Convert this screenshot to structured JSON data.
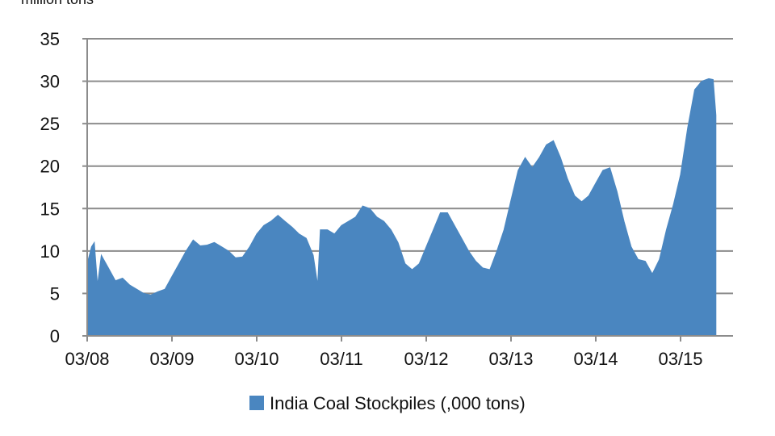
{
  "chart_data": {
    "type": "area",
    "unit_label": "million tons",
    "legend_position": "bottom",
    "grid": true,
    "ylim": [
      0,
      35
    ],
    "y_ticks": [
      0,
      5,
      10,
      15,
      20,
      25,
      30,
      35
    ],
    "x_ticks": [
      "03/08",
      "03/09",
      "03/10",
      "03/11",
      "03/12",
      "03/13",
      "03/14",
      "03/15"
    ],
    "x_range": [
      "2008-03",
      "2015-08"
    ],
    "series": [
      {
        "name": "India Coal Stockpiles (,000 tons)",
        "color": "#4a86c0",
        "points": [
          [
            "2008-03",
            8.5
          ],
          [
            "2008-03-20",
            10.5
          ],
          [
            "2008-04",
            11.0
          ],
          [
            "2008-04-15",
            6.0
          ],
          [
            "2008-05",
            9.5
          ],
          [
            "2008-06",
            8.0
          ],
          [
            "2008-07",
            6.5
          ],
          [
            "2008-08",
            6.8
          ],
          [
            "2008-09",
            6.0
          ],
          [
            "2008-10",
            5.5
          ],
          [
            "2008-11",
            5.0
          ],
          [
            "2008-12",
            4.8
          ],
          [
            "2009-01",
            5.2
          ],
          [
            "2009-02",
            5.5
          ],
          [
            "2009-03",
            7.0
          ],
          [
            "2009-04",
            8.5
          ],
          [
            "2009-05",
            10.0
          ],
          [
            "2009-06",
            11.3
          ],
          [
            "2009-07",
            10.6
          ],
          [
            "2009-08",
            10.7
          ],
          [
            "2009-09",
            11.0
          ],
          [
            "2009-10",
            10.5
          ],
          [
            "2009-11",
            10.0
          ],
          [
            "2009-12",
            9.2
          ],
          [
            "2010-01",
            9.3
          ],
          [
            "2010-02",
            10.5
          ],
          [
            "2010-03",
            12.0
          ],
          [
            "2010-04",
            13.0
          ],
          [
            "2010-05",
            13.5
          ],
          [
            "2010-06",
            14.2
          ],
          [
            "2010-07",
            13.5
          ],
          [
            "2010-08",
            12.8
          ],
          [
            "2010-09",
            12.0
          ],
          [
            "2010-10",
            11.5
          ],
          [
            "2010-11",
            9.5
          ],
          [
            "2010-11-20",
            6.0
          ],
          [
            "2010-12",
            12.5
          ],
          [
            "2011-01",
            12.5
          ],
          [
            "2011-02",
            12.0
          ],
          [
            "2011-03",
            13.0
          ],
          [
            "2011-04",
            13.5
          ],
          [
            "2011-05",
            14.0
          ],
          [
            "2011-06",
            15.3
          ],
          [
            "2011-07",
            15.0
          ],
          [
            "2011-08",
            14.0
          ],
          [
            "2011-09",
            13.5
          ],
          [
            "2011-10",
            12.5
          ],
          [
            "2011-11",
            11.0
          ],
          [
            "2011-12",
            8.5
          ],
          [
            "2012-01",
            7.8
          ],
          [
            "2012-02",
            8.5
          ],
          [
            "2012-03",
            10.5
          ],
          [
            "2012-04",
            12.5
          ],
          [
            "2012-05",
            14.5
          ],
          [
            "2012-06",
            14.5
          ],
          [
            "2012-07",
            13.0
          ],
          [
            "2012-08",
            11.5
          ],
          [
            "2012-09",
            10.0
          ],
          [
            "2012-10",
            8.8
          ],
          [
            "2012-11",
            8.0
          ],
          [
            "2012-12",
            7.8
          ],
          [
            "2013-01",
            10.0
          ],
          [
            "2013-02",
            12.5
          ],
          [
            "2013-03",
            16.0
          ],
          [
            "2013-04",
            19.5
          ],
          [
            "2013-05",
            21.0
          ],
          [
            "2013-06",
            19.8
          ],
          [
            "2013-07",
            21.0
          ],
          [
            "2013-08",
            22.5
          ],
          [
            "2013-09",
            23.0
          ],
          [
            "2013-10",
            21.0
          ],
          [
            "2013-11",
            18.5
          ],
          [
            "2013-12",
            16.5
          ],
          [
            "2014-01",
            15.8
          ],
          [
            "2014-02",
            16.5
          ],
          [
            "2014-03",
            18.0
          ],
          [
            "2014-04",
            19.5
          ],
          [
            "2014-05",
            19.8
          ],
          [
            "2014-06",
            17.0
          ],
          [
            "2014-07",
            13.5
          ],
          [
            "2014-08",
            10.5
          ],
          [
            "2014-09",
            9.0
          ],
          [
            "2014-10",
            8.8
          ],
          [
            "2014-11",
            7.3
          ],
          [
            "2014-12",
            9.0
          ],
          [
            "2015-01",
            12.5
          ],
          [
            "2015-02",
            15.5
          ],
          [
            "2015-03",
            19.0
          ],
          [
            "2015-04",
            24.5
          ],
          [
            "2015-05",
            29.0
          ],
          [
            "2015-06",
            30.0
          ],
          [
            "2015-07",
            30.3
          ],
          [
            "2015-07-20",
            30.2
          ],
          [
            "2015-08",
            26.0
          ]
        ]
      }
    ]
  }
}
